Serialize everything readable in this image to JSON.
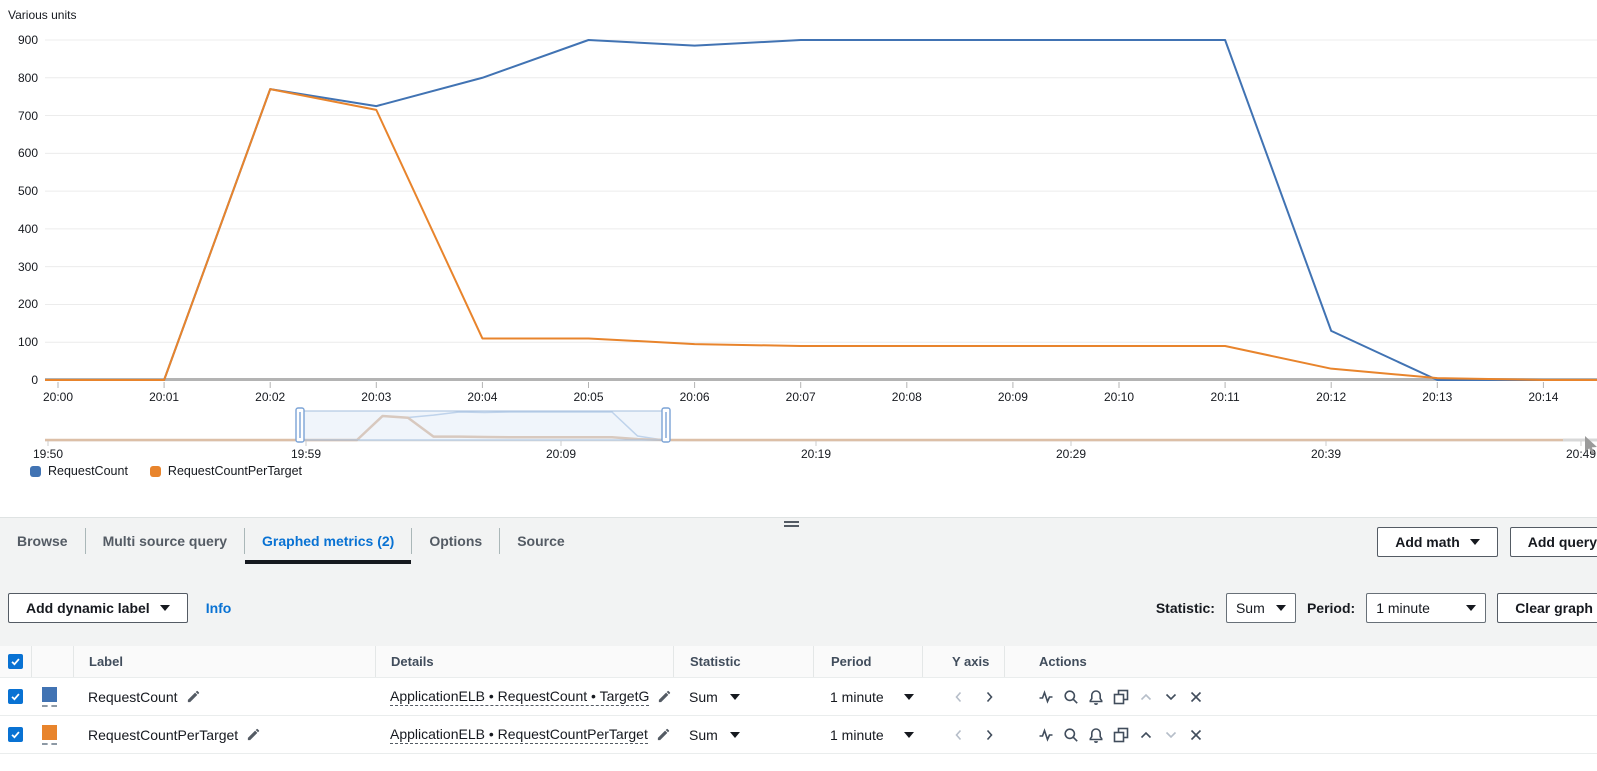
{
  "chart": {
    "units_label": "Various units"
  },
  "chart_data": {
    "type": "line",
    "title": "",
    "xlabel": "",
    "ylabel": "Various units",
    "ylim": [
      0,
      900
    ],
    "grid": true,
    "legend_position": "bottom-left",
    "x": [
      "20:00",
      "20:01",
      "20:02",
      "20:03",
      "20:04",
      "20:05",
      "20:06",
      "20:07",
      "20:08",
      "20:09",
      "20:10",
      "20:11",
      "20:12",
      "20:13",
      "20:14"
    ],
    "y_ticks": [
      0,
      100,
      200,
      300,
      400,
      500,
      600,
      700,
      800,
      900
    ],
    "series": [
      {
        "name": "RequestCount",
        "color": "#4173b3",
        "values": [
          0,
          0,
          770,
          725,
          800,
          900,
          885,
          900,
          900,
          900,
          900,
          900,
          130,
          0,
          0
        ]
      },
      {
        "name": "RequestCountPerTarget",
        "color": "#e8842c",
        "values": [
          0,
          0,
          770,
          715,
          110,
          110,
          95,
          90,
          90,
          90,
          90,
          90,
          30,
          5,
          0
        ]
      }
    ]
  },
  "brush": {
    "labels": [
      "19:50",
      "19:59",
      "20:09",
      "20:19",
      "20:29",
      "20:39",
      "20:49"
    ]
  },
  "legend": {
    "items": [
      {
        "label": "RequestCount",
        "color": "#4173b3"
      },
      {
        "label": "RequestCountPerTarget",
        "color": "#e8842c"
      }
    ]
  },
  "panel": {
    "tabs": [
      {
        "label": "Browse",
        "active": false
      },
      {
        "label": "Multi source query",
        "active": false
      },
      {
        "label": "Graphed metrics (2)",
        "active": true
      },
      {
        "label": "Options",
        "active": false
      },
      {
        "label": "Source",
        "active": false
      }
    ],
    "add_math_label": "Add math",
    "add_query_label": "Add query",
    "toolbar": {
      "add_dynamic_label": "Add dynamic label",
      "info_label": "Info",
      "statistic_label": "Statistic:",
      "statistic_value": "Sum",
      "period_label": "Period:",
      "period_value": "1 minute",
      "clear_graph_label": "Clear graph"
    },
    "table": {
      "select_all_checked": true,
      "headers": {
        "label": "Label",
        "details": "Details",
        "statistic": "Statistic",
        "period": "Period",
        "y_axis": "Y axis",
        "actions": "Actions"
      },
      "action_icons": [
        "sparkline",
        "search",
        "alarm",
        "duplicate",
        "move-up",
        "move-down",
        "remove"
      ],
      "rows": [
        {
          "checked": true,
          "color": "#4173b3",
          "label": "RequestCount",
          "details": "ApplicationELB • RequestCount • TargetG",
          "statistic": "Sum",
          "period": "1 minute",
          "y_axis_left_enabled": false,
          "y_axis_right_enabled": true,
          "move_up_enabled": false,
          "move_down_enabled": true
        },
        {
          "checked": true,
          "color": "#e8842c",
          "label": "RequestCountPerTarget",
          "details": "ApplicationELB • RequestCountPerTarget",
          "statistic": "Sum",
          "period": "1 minute",
          "y_axis_left_enabled": false,
          "y_axis_right_enabled": true,
          "move_up_enabled": true,
          "move_down_enabled": false
        }
      ]
    }
  },
  "colors": {
    "accent_blue": "#0972d3",
    "series_blue": "#4173b3",
    "series_orange": "#e8842c",
    "panel_gray": "#f2f3f3"
  }
}
